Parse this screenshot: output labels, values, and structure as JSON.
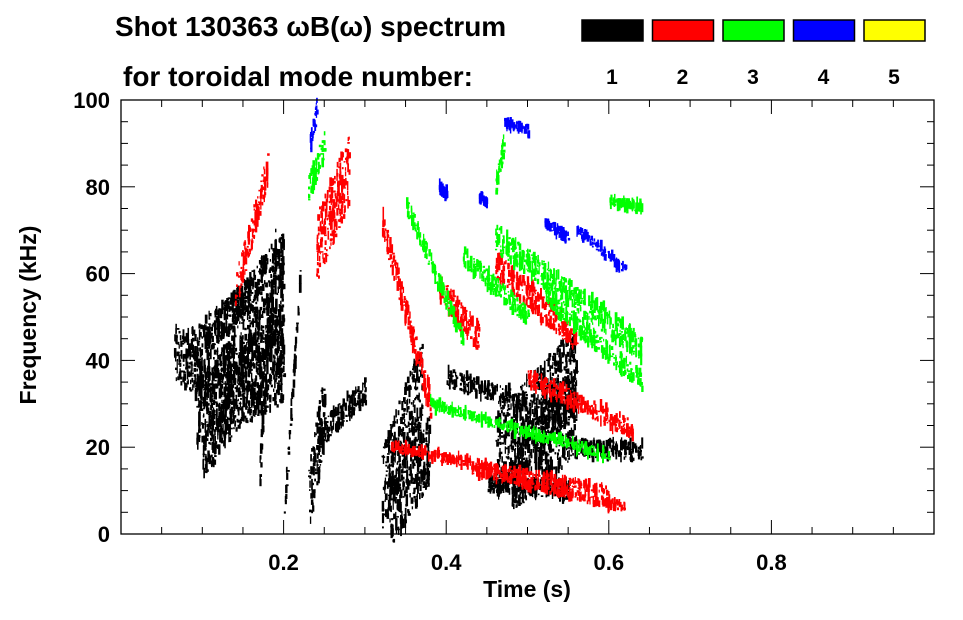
{
  "chart_data": {
    "type": "heatmap",
    "title": "Shot 130363 ωB(ω) spectrum",
    "subtitle": "for toroidal mode number:",
    "xlabel": "Time (s)",
    "ylabel": "Frequency (kHz)",
    "xlim": [
      0,
      1.0
    ],
    "ylim": [
      0,
      100
    ],
    "xticks": [
      {
        "v": 0.2,
        "label": "0.2"
      },
      {
        "v": 0.4,
        "label": "0.4"
      },
      {
        "v": 0.6,
        "label": "0.6"
      },
      {
        "v": 0.8,
        "label": "0.8"
      }
    ],
    "yticks": [
      {
        "v": 0,
        "label": "0"
      },
      {
        "v": 20,
        "label": "20"
      },
      {
        "v": 40,
        "label": "40"
      },
      {
        "v": 60,
        "label": "60"
      },
      {
        "v": 80,
        "label": "80"
      },
      {
        "v": 100,
        "label": "100"
      }
    ],
    "legend": {
      "placement": "top-right",
      "entries": [
        {
          "label": "1",
          "color": "#000000"
        },
        {
          "label": "2",
          "color": "#ff0000"
        },
        {
          "label": "3",
          "color": "#00ff00"
        },
        {
          "label": "4",
          "color": "#0000ff"
        },
        {
          "label": "5",
          "color": "#ffff00"
        }
      ]
    },
    "series": [
      {
        "name": "n=1",
        "color": "#000000",
        "segments": [
          [
            0.065,
            42,
            0.1,
            36,
            6
          ],
          [
            0.08,
            42,
            0.16,
            55,
            4
          ],
          [
            0.12,
            48,
            0.2,
            66,
            4
          ],
          [
            0.09,
            30,
            0.2,
            40,
            10
          ],
          [
            0.1,
            25,
            0.2,
            50,
            12
          ],
          [
            0.23,
            8,
            0.25,
            30,
            8
          ],
          [
            0.24,
            22,
            0.3,
            33,
            3
          ],
          [
            0.32,
            10,
            0.37,
            35,
            10
          ],
          [
            0.33,
            5,
            0.38,
            20,
            8
          ],
          [
            0.46,
            18,
            0.56,
            38,
            10
          ],
          [
            0.48,
            15,
            0.56,
            28,
            10
          ],
          [
            0.55,
            20,
            0.64,
            19,
            2
          ],
          [
            0.4,
            36,
            0.5,
            30,
            2
          ],
          [
            0.45,
            12,
            0.55,
            10,
            2
          ],
          [
            0.2,
            5,
            0.22,
            60,
            2
          ],
          [
            0.17,
            15,
            0.19,
            68,
            4
          ]
        ]
      },
      {
        "name": "n=2",
        "color": "#ff0000",
        "segments": [
          [
            0.14,
            56,
            0.18,
            84,
            4
          ],
          [
            0.24,
            66,
            0.28,
            84,
            8
          ],
          [
            0.32,
            72,
            0.38,
            30,
            3
          ],
          [
            0.39,
            57,
            0.44,
            45,
            3
          ],
          [
            0.46,
            62,
            0.56,
            45,
            3
          ],
          [
            0.5,
            36,
            0.63,
            24,
            2
          ],
          [
            0.33,
            20,
            0.6,
            10,
            1
          ],
          [
            0.43,
            15,
            0.62,
            6,
            1
          ]
        ]
      },
      {
        "name": "n=3",
        "color": "#00ff00",
        "segments": [
          [
            0.23,
            80,
            0.25,
            90,
            3
          ],
          [
            0.35,
            76,
            0.42,
            45,
            2
          ],
          [
            0.42,
            64,
            0.5,
            50,
            2
          ],
          [
            0.46,
            68,
            0.64,
            43,
            3
          ],
          [
            0.52,
            55,
            0.64,
            35,
            2
          ],
          [
            0.6,
            77,
            0.64,
            75,
            1
          ],
          [
            0.46,
            80,
            0.47,
            90,
            2
          ],
          [
            0.38,
            30,
            0.6,
            18,
            1
          ]
        ]
      },
      {
        "name": "n=4",
        "color": "#0000ff",
        "segments": [
          [
            0.232,
            90,
            0.24,
            98,
            2
          ],
          [
            0.39,
            80,
            0.4,
            78,
            1
          ],
          [
            0.44,
            78,
            0.45,
            76,
            1
          ],
          [
            0.56,
            70,
            0.62,
            61,
            1
          ],
          [
            0.47,
            95,
            0.5,
            93,
            1
          ],
          [
            0.52,
            72,
            0.55,
            68,
            1
          ]
        ]
      },
      {
        "name": "n=5",
        "color": "#ffff00",
        "segments": []
      }
    ]
  }
}
